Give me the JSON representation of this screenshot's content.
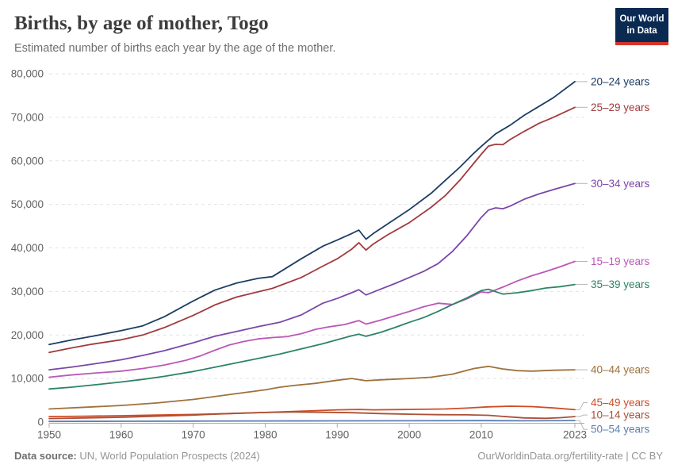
{
  "header": {
    "title": "Births, by age of mother, Togo",
    "subtitle": "Estimated number of births each year by the age of the mother."
  },
  "logo": {
    "line1": "Our World",
    "line2": "in Data",
    "bg_color": "#0b2a52",
    "accent_color": "#d1352b"
  },
  "footer": {
    "source_label": "Data source:",
    "source_text": " UN, World Population Prospects (2024)",
    "right_text": "OurWorldinData.org/fertility-rate | CC BY"
  },
  "chart_data": {
    "type": "line",
    "title": "Births, by age of mother, Togo",
    "xlabel": "",
    "ylabel": "",
    "xlim": [
      1950,
      2023
    ],
    "ylim": [
      0,
      80000
    ],
    "x_ticks": [
      1950,
      1960,
      1970,
      1980,
      1990,
      2000,
      2010,
      2023
    ],
    "y_ticks": [
      0,
      10000,
      20000,
      30000,
      40000,
      50000,
      60000,
      70000,
      80000
    ],
    "grid": "horizontal-dashed",
    "legend_position": "right",
    "series": [
      {
        "name": "20–24 years",
        "color": "#1d3d63",
        "label_offset": 0,
        "points": [
          [
            1950,
            17800
          ],
          [
            1953,
            18800
          ],
          [
            1956,
            19700
          ],
          [
            1960,
            21000
          ],
          [
            1963,
            22100
          ],
          [
            1966,
            24200
          ],
          [
            1970,
            27800
          ],
          [
            1973,
            30300
          ],
          [
            1976,
            31900
          ],
          [
            1979,
            33000
          ],
          [
            1981,
            33400
          ],
          [
            1985,
            37500
          ],
          [
            1988,
            40400
          ],
          [
            1990,
            41800
          ],
          [
            1992,
            43300
          ],
          [
            1993,
            44100
          ],
          [
            1994,
            42000
          ],
          [
            1995,
            43300
          ],
          [
            1997,
            45500
          ],
          [
            2000,
            48800
          ],
          [
            2003,
            52500
          ],
          [
            2005,
            55500
          ],
          [
            2007,
            58500
          ],
          [
            2009,
            61800
          ],
          [
            2010,
            63300
          ],
          [
            2012,
            66200
          ],
          [
            2014,
            68200
          ],
          [
            2016,
            70500
          ],
          [
            2018,
            72500
          ],
          [
            2020,
            74500
          ],
          [
            2023,
            78200
          ]
        ]
      },
      {
        "name": "25–29 years",
        "color": "#a03a3e",
        "label_offset": 0,
        "points": [
          [
            1950,
            16000
          ],
          [
            1953,
            17000
          ],
          [
            1956,
            17900
          ],
          [
            1960,
            18900
          ],
          [
            1963,
            20000
          ],
          [
            1966,
            21700
          ],
          [
            1970,
            24500
          ],
          [
            1973,
            26900
          ],
          [
            1976,
            28700
          ],
          [
            1979,
            29900
          ],
          [
            1981,
            30700
          ],
          [
            1985,
            33200
          ],
          [
            1988,
            35800
          ],
          [
            1990,
            37500
          ],
          [
            1992,
            39700
          ],
          [
            1993,
            41200
          ],
          [
            1994,
            39500
          ],
          [
            1995,
            40900
          ],
          [
            1997,
            43000
          ],
          [
            2000,
            45800
          ],
          [
            2003,
            49300
          ],
          [
            2005,
            52000
          ],
          [
            2007,
            55500
          ],
          [
            2009,
            59500
          ],
          [
            2010,
            61500
          ],
          [
            2011,
            63400
          ],
          [
            2012,
            63800
          ],
          [
            2013,
            63700
          ],
          [
            2014,
            64900
          ],
          [
            2016,
            66800
          ],
          [
            2018,
            68600
          ],
          [
            2020,
            70000
          ],
          [
            2023,
            72300
          ]
        ]
      },
      {
        "name": "30–34 years",
        "color": "#7a47a7",
        "label_offset": 0,
        "points": [
          [
            1950,
            12000
          ],
          [
            1953,
            12600
          ],
          [
            1956,
            13300
          ],
          [
            1960,
            14300
          ],
          [
            1963,
            15300
          ],
          [
            1966,
            16400
          ],
          [
            1970,
            18200
          ],
          [
            1973,
            19700
          ],
          [
            1976,
            20800
          ],
          [
            1979,
            21900
          ],
          [
            1982,
            22900
          ],
          [
            1985,
            24600
          ],
          [
            1988,
            27300
          ],
          [
            1990,
            28400
          ],
          [
            1992,
            29700
          ],
          [
            1993,
            30400
          ],
          [
            1994,
            29200
          ],
          [
            1996,
            30500
          ],
          [
            1998,
            31800
          ],
          [
            2000,
            33200
          ],
          [
            2002,
            34600
          ],
          [
            2004,
            36400
          ],
          [
            2006,
            39200
          ],
          [
            2008,
            42800
          ],
          [
            2010,
            47000
          ],
          [
            2011,
            48700
          ],
          [
            2012,
            49200
          ],
          [
            2013,
            49000
          ],
          [
            2014,
            49600
          ],
          [
            2016,
            51200
          ],
          [
            2018,
            52400
          ],
          [
            2020,
            53400
          ],
          [
            2023,
            54800
          ]
        ]
      },
      {
        "name": "15–19 years",
        "color": "#ba57b8",
        "label_offset": 0,
        "points": [
          [
            1950,
            10300
          ],
          [
            1953,
            10800
          ],
          [
            1956,
            11200
          ],
          [
            1960,
            11700
          ],
          [
            1963,
            12300
          ],
          [
            1966,
            13100
          ],
          [
            1969,
            14200
          ],
          [
            1971,
            15200
          ],
          [
            1973,
            16500
          ],
          [
            1975,
            17700
          ],
          [
            1977,
            18500
          ],
          [
            1979,
            19100
          ],
          [
            1981,
            19400
          ],
          [
            1983,
            19600
          ],
          [
            1985,
            20300
          ],
          [
            1987,
            21300
          ],
          [
            1989,
            21900
          ],
          [
            1991,
            22400
          ],
          [
            1993,
            23300
          ],
          [
            1994,
            22500
          ],
          [
            1996,
            23400
          ],
          [
            1998,
            24400
          ],
          [
            2000,
            25400
          ],
          [
            2002,
            26500
          ],
          [
            2004,
            27300
          ],
          [
            2006,
            27000
          ],
          [
            2008,
            28300
          ],
          [
            2010,
            29900
          ],
          [
            2011,
            29700
          ],
          [
            2013,
            31000
          ],
          [
            2015,
            32400
          ],
          [
            2017,
            33600
          ],
          [
            2019,
            34600
          ],
          [
            2021,
            35700
          ],
          [
            2023,
            36900
          ]
        ]
      },
      {
        "name": "35–39 years",
        "color": "#2c8465",
        "label_offset": 0,
        "points": [
          [
            1950,
            7600
          ],
          [
            1953,
            8000
          ],
          [
            1956,
            8500
          ],
          [
            1960,
            9200
          ],
          [
            1963,
            9800
          ],
          [
            1966,
            10500
          ],
          [
            1970,
            11600
          ],
          [
            1973,
            12600
          ],
          [
            1976,
            13600
          ],
          [
            1979,
            14600
          ],
          [
            1982,
            15600
          ],
          [
            1985,
            16800
          ],
          [
            1988,
            18000
          ],
          [
            1990,
            18900
          ],
          [
            1992,
            19800
          ],
          [
            1993,
            20200
          ],
          [
            1994,
            19700
          ],
          [
            1996,
            20600
          ],
          [
            1998,
            21700
          ],
          [
            2000,
            22900
          ],
          [
            2002,
            24000
          ],
          [
            2004,
            25400
          ],
          [
            2006,
            27000
          ],
          [
            2008,
            28500
          ],
          [
            2010,
            30200
          ],
          [
            2011,
            30500
          ],
          [
            2013,
            29400
          ],
          [
            2015,
            29700
          ],
          [
            2017,
            30200
          ],
          [
            2019,
            30800
          ],
          [
            2021,
            31100
          ],
          [
            2023,
            31600
          ]
        ]
      },
      {
        "name": "40–44 years",
        "color": "#9e713c",
        "label_offset": 0,
        "points": [
          [
            1950,
            3000
          ],
          [
            1955,
            3400
          ],
          [
            1960,
            3800
          ],
          [
            1965,
            4400
          ],
          [
            1970,
            5200
          ],
          [
            1975,
            6300
          ],
          [
            1980,
            7400
          ],
          [
            1982,
            8000
          ],
          [
            1984,
            8400
          ],
          [
            1987,
            8900
          ],
          [
            1990,
            9600
          ],
          [
            1992,
            10000
          ],
          [
            1994,
            9500
          ],
          [
            1996,
            9700
          ],
          [
            2000,
            10000
          ],
          [
            2003,
            10300
          ],
          [
            2006,
            11000
          ],
          [
            2009,
            12300
          ],
          [
            2011,
            12800
          ],
          [
            2013,
            12200
          ],
          [
            2015,
            11800
          ],
          [
            2017,
            11700
          ],
          [
            2020,
            11900
          ],
          [
            2023,
            12000
          ]
        ]
      },
      {
        "name": "45–49 years",
        "color": "#cf4c26",
        "label_offset": -9,
        "points": [
          [
            1950,
            1250
          ],
          [
            1955,
            1350
          ],
          [
            1960,
            1450
          ],
          [
            1965,
            1600
          ],
          [
            1970,
            1750
          ],
          [
            1975,
            1950
          ],
          [
            1980,
            2200
          ],
          [
            1985,
            2500
          ],
          [
            1990,
            2800
          ],
          [
            1993,
            2900
          ],
          [
            1995,
            2800
          ],
          [
            2000,
            2900
          ],
          [
            2005,
            3000
          ],
          [
            2008,
            3200
          ],
          [
            2011,
            3500
          ],
          [
            2014,
            3650
          ],
          [
            2017,
            3550
          ],
          [
            2020,
            3250
          ],
          [
            2023,
            2850
          ]
        ]
      },
      {
        "name": "10–14 years",
        "color": "#ab5036",
        "label_offset": -2,
        "points": [
          [
            1950,
            800
          ],
          [
            1955,
            950
          ],
          [
            1960,
            1100
          ],
          [
            1965,
            1350
          ],
          [
            1970,
            1600
          ],
          [
            1975,
            1950
          ],
          [
            1980,
            2200
          ],
          [
            1984,
            2300
          ],
          [
            1988,
            2250
          ],
          [
            1992,
            2150
          ],
          [
            1996,
            1950
          ],
          [
            2000,
            1800
          ],
          [
            2004,
            1700
          ],
          [
            2008,
            1650
          ],
          [
            2011,
            1550
          ],
          [
            2013,
            1300
          ],
          [
            2016,
            950
          ],
          [
            2019,
            850
          ],
          [
            2021,
            1000
          ],
          [
            2023,
            1250
          ]
        ]
      },
      {
        "name": "50–54 years",
        "color": "#5d7fb5",
        "label_offset": 11,
        "points": [
          [
            1950,
            150
          ],
          [
            1960,
            180
          ],
          [
            1970,
            220
          ],
          [
            1980,
            260
          ],
          [
            1990,
            280
          ],
          [
            2000,
            300
          ],
          [
            2010,
            320
          ],
          [
            2017,
            300
          ],
          [
            2023,
            350
          ]
        ]
      }
    ]
  }
}
